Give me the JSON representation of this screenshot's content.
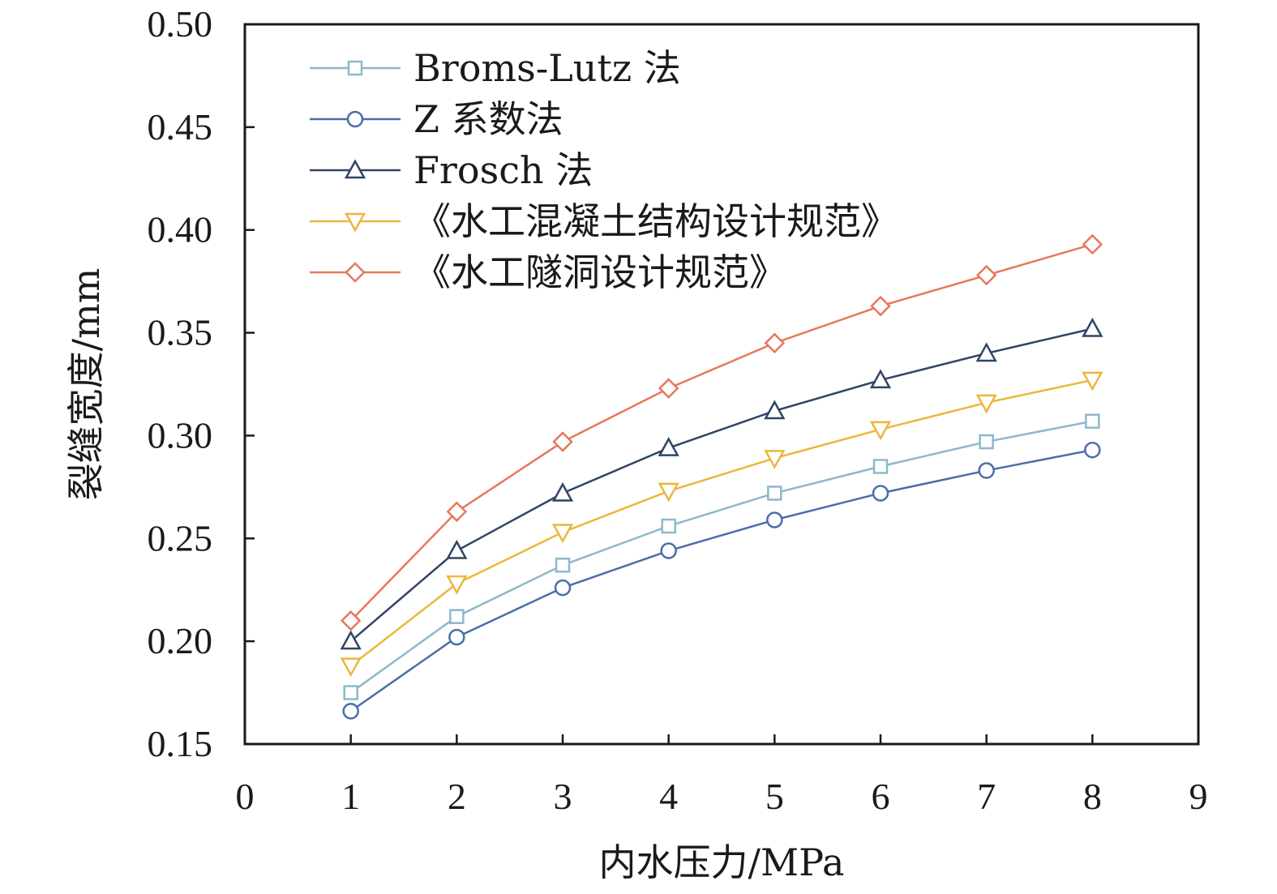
{
  "chart_data": {
    "type": "line",
    "xlabel": "内水压力/MPa",
    "ylabel": "裂缝宽度/mm",
    "xlim": [
      0,
      9
    ],
    "ylim": [
      0.15,
      0.5
    ],
    "xticks": [
      "0",
      "1",
      "2",
      "3",
      "4",
      "5",
      "6",
      "7",
      "8",
      "9"
    ],
    "yticks": [
      "0.15",
      "0.20",
      "0.25",
      "0.30",
      "0.35",
      "0.40",
      "0.45",
      "0.50"
    ],
    "x": [
      1,
      2,
      3,
      4,
      5,
      6,
      7,
      8
    ],
    "grid": false,
    "legend_position": "top-left",
    "series": [
      {
        "name": "Broms-Lutz 法",
        "color": "#8db8cc",
        "marker": "square",
        "values": [
          0.175,
          0.212,
          0.237,
          0.256,
          0.272,
          0.285,
          0.297,
          0.307
        ]
      },
      {
        "name": "Z 系数法",
        "color": "#4a6ea8",
        "marker": "circle",
        "values": [
          0.166,
          0.202,
          0.226,
          0.244,
          0.259,
          0.272,
          0.283,
          0.293
        ]
      },
      {
        "name": "Frosch 法",
        "color": "#2f4565",
        "marker": "triangle-up",
        "values": [
          0.2,
          0.244,
          0.272,
          0.294,
          0.312,
          0.327,
          0.34,
          0.352
        ]
      },
      {
        "name": "《水工混凝土结构设计规范》",
        "color": "#ecb73a",
        "marker": "triangle-down",
        "values": [
          0.188,
          0.228,
          0.253,
          0.273,
          0.289,
          0.303,
          0.316,
          0.327
        ]
      },
      {
        "name": "《水工隧洞设计规范》",
        "color": "#e8775a",
        "marker": "diamond",
        "values": [
          0.21,
          0.263,
          0.297,
          0.323,
          0.345,
          0.363,
          0.378,
          0.393
        ]
      }
    ]
  }
}
